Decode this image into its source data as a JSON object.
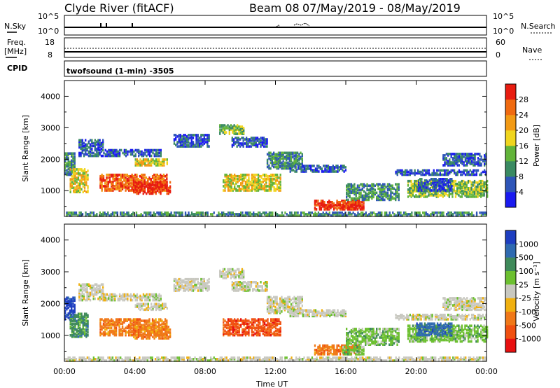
{
  "header": {
    "title": "Clyde River (fitACF)",
    "beam": "Beam 08",
    "dates": "07/May/2019 - 08/May/2019"
  },
  "top_panels": {
    "nsky_label": "N.Sky",
    "nsky_ticks": [
      "10^5",
      "10^0"
    ],
    "nsearch_label": "N.Search",
    "nsearch_ticks": [
      "10^5",
      "10^0"
    ],
    "freq_label_1": "Freq.",
    "freq_label_2": "[MHz]",
    "freq_ticks": [
      "18",
      "8"
    ],
    "nave_label": "Nave",
    "nave_ticks": [
      "60",
      "0"
    ],
    "cpid_label": "CPID",
    "cpid_text": "twofsound (1-min) -3505"
  },
  "chart_data": [
    {
      "type": "heatmap",
      "name": "power",
      "ylabel": "Slant Range [km]",
      "xlabel": "Time UT",
      "y_ticks": [
        "1000",
        "2000",
        "3000",
        "4000"
      ],
      "ylim": [
        180,
        4500
      ],
      "x_ticks": [
        "00:00",
        "04:00",
        "08:00",
        "12:00",
        "16:00",
        "20:00",
        "00:00"
      ],
      "xlim_hours": [
        0,
        24
      ],
      "colorbar_label": "Power [dB]",
      "colorbar_ticks": [
        "4",
        "8",
        "12",
        "16",
        "20",
        "24",
        "28"
      ],
      "colorbar_colors": [
        "#1a1af0",
        "#2e55b8",
        "#3a8a62",
        "#62b43a",
        "#f0d51e",
        "#f29a14",
        "#f06a10",
        "#e81c10"
      ]
    },
    {
      "type": "heatmap",
      "name": "velocity",
      "ylabel": "Slant Range [km]",
      "xlabel": "Time UT",
      "y_ticks": [
        "1000",
        "2000",
        "3000",
        "4000"
      ],
      "ylim": [
        180,
        4500
      ],
      "x_ticks": [
        "00:00",
        "04:00",
        "08:00",
        "12:00",
        "16:00",
        "20:00",
        "00:00"
      ],
      "xlim_hours": [
        0,
        24
      ],
      "colorbar_label": "Velocity [m s⁻¹]",
      "colorbar_ticks": [
        "1000",
        "500",
        "100",
        "25",
        "-25",
        "-100",
        "-500",
        "-1000"
      ],
      "colorbar_colors": [
        "#1e3ec0",
        "#2f6ab0",
        "#3f8a5a",
        "#6cc030",
        "#c8c8c0",
        "#f0b010",
        "#f07818",
        "#f05010",
        "#e81010"
      ]
    }
  ]
}
